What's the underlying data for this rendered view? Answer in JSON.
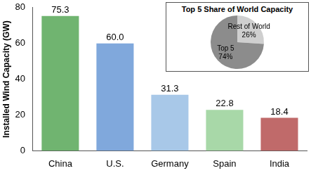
{
  "chart_data": [
    {
      "type": "bar",
      "y_label": "Installed Wind Capacity (GW)",
      "categories": [
        "China",
        "U.S.",
        "Germany",
        "Spain",
        "India"
      ],
      "values": [
        75.3,
        60.0,
        31.3,
        22.8,
        18.4
      ],
      "value_labels": [
        "75.3",
        "60.0",
        "31.3",
        "22.8",
        "18.4"
      ],
      "colors": [
        "#70b470",
        "#80a8dc",
        "#a8c8e8",
        "#a8d8a8",
        "#c06a6a"
      ],
      "ylim": [
        0,
        80
      ],
      "yticks": [
        0,
        20,
        40,
        60,
        80
      ],
      "grid": false,
      "data_labels": true
    },
    {
      "type": "pie",
      "title": "Top 5 Share of World Capacity",
      "categories": [
        "Rest of World",
        "Top 5"
      ],
      "values": [
        26,
        74
      ],
      "value_labels": [
        "26%",
        "74%"
      ],
      "colors": [
        "#cfcfcf",
        "#8c8c8c"
      ],
      "data_labels": true
    }
  ]
}
